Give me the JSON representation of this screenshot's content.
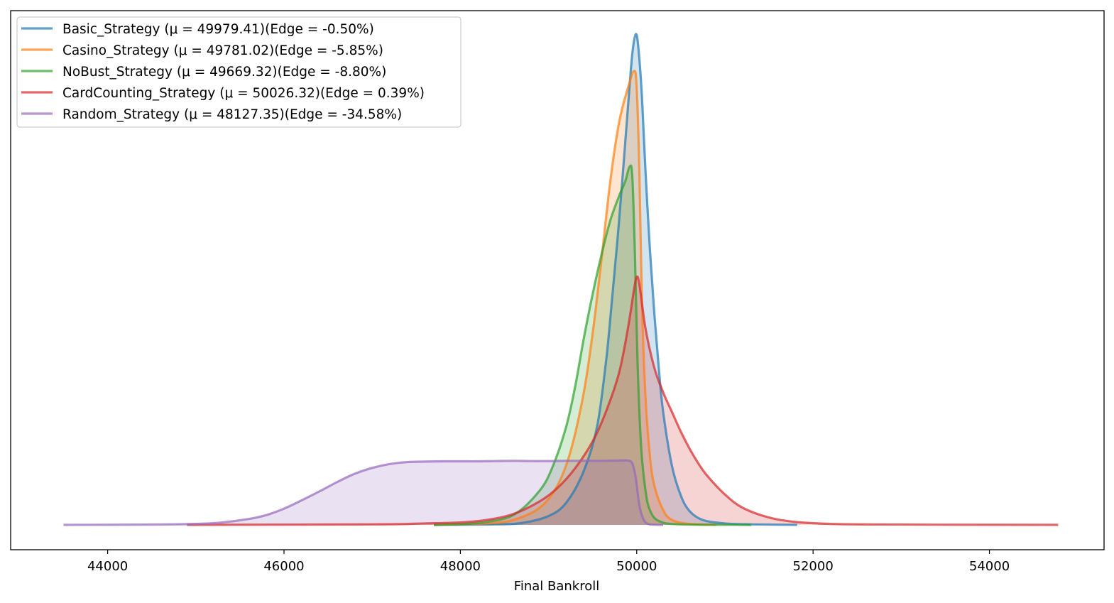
{
  "chart_data": {
    "type": "area",
    "title": "",
    "xlabel": "Final Bankroll",
    "ylabel": "",
    "xlim": [
      42900,
      55300
    ],
    "ylim": [
      0,
      1.0
    ],
    "x_ticks": [
      44000,
      46000,
      48000,
      50000,
      52000,
      54000
    ],
    "x_tick_labels": [
      "44000",
      "46000",
      "48000",
      "50000",
      "52000",
      "54000"
    ],
    "grid": false,
    "legend_position": "upper-left",
    "series": [
      {
        "name": "Basic_Strategy (μ = 49979.41)(Edge = -0.50%)",
        "color": "#1f77b4",
        "points": [
          [
            47700,
            0
          ],
          [
            48400,
            0.001
          ],
          [
            48700,
            0.004
          ],
          [
            49000,
            0.018
          ],
          [
            49200,
            0.045
          ],
          [
            49400,
            0.11
          ],
          [
            49550,
            0.2
          ],
          [
            49650,
            0.33
          ],
          [
            49700,
            0.42
          ],
          [
            49800,
            0.62
          ],
          [
            49900,
            0.85
          ],
          [
            49950,
            0.96
          ],
          [
            49990,
            1.0
          ],
          [
            50020,
            0.97
          ],
          [
            50060,
            0.87
          ],
          [
            50100,
            0.72
          ],
          [
            50150,
            0.56
          ],
          [
            50200,
            0.43
          ],
          [
            50250,
            0.32
          ],
          [
            50300,
            0.23
          ],
          [
            50400,
            0.12
          ],
          [
            50500,
            0.06
          ],
          [
            50600,
            0.028
          ],
          [
            50750,
            0.01
          ],
          [
            51000,
            0.003
          ],
          [
            51300,
            0.001
          ],
          [
            51820,
            0
          ]
        ]
      },
      {
        "name": "Casino_Strategy (μ = 49781.02)(Edge = -5.85%)",
        "color": "#ff7f0e",
        "points": [
          [
            47700,
            0
          ],
          [
            48300,
            0.003
          ],
          [
            48600,
            0.01
          ],
          [
            48900,
            0.035
          ],
          [
            49100,
            0.08
          ],
          [
            49250,
            0.15
          ],
          [
            49400,
            0.27
          ],
          [
            49500,
            0.39
          ],
          [
            49600,
            0.54
          ],
          [
            49700,
            0.7
          ],
          [
            49800,
            0.82
          ],
          [
            49900,
            0.89
          ],
          [
            49970,
            0.925
          ],
          [
            50000,
            0.89
          ],
          [
            50030,
            0.72
          ],
          [
            50060,
            0.45
          ],
          [
            50100,
            0.26
          ],
          [
            50150,
            0.14
          ],
          [
            50200,
            0.08
          ],
          [
            50300,
            0.03
          ],
          [
            50400,
            0.01
          ],
          [
            50600,
            0.002
          ],
          [
            50900,
            0.0
          ]
        ]
      },
      {
        "name": "NoBust_Strategy (μ = 49669.32)(Edge = -8.80%)",
        "color": "#2ca02c",
        "points": [
          [
            47700,
            0
          ],
          [
            48200,
            0.004
          ],
          [
            48600,
            0.02
          ],
          [
            48900,
            0.07
          ],
          [
            49050,
            0.12
          ],
          [
            49200,
            0.2
          ],
          [
            49300,
            0.28
          ],
          [
            49400,
            0.38
          ],
          [
            49500,
            0.47
          ],
          [
            49600,
            0.55
          ],
          [
            49700,
            0.62
          ],
          [
            49800,
            0.67
          ],
          [
            49870,
            0.7
          ],
          [
            49920,
            0.73
          ],
          [
            49950,
            0.71
          ],
          [
            49980,
            0.55
          ],
          [
            50010,
            0.33
          ],
          [
            50050,
            0.16
          ],
          [
            50100,
            0.07
          ],
          [
            50150,
            0.03
          ],
          [
            50250,
            0.008
          ],
          [
            50500,
            0.001
          ],
          [
            51300,
            0
          ]
        ]
      },
      {
        "name": "CardCounting_Strategy (μ = 50026.32)(Edge = 0.39%)",
        "color": "#d62728",
        "points": [
          [
            44900,
            0
          ],
          [
            47000,
            0.001
          ],
          [
            47600,
            0.003
          ],
          [
            48000,
            0.005
          ],
          [
            48300,
            0.01
          ],
          [
            48600,
            0.022
          ],
          [
            48900,
            0.048
          ],
          [
            49100,
            0.075
          ],
          [
            49300,
            0.115
          ],
          [
            49500,
            0.17
          ],
          [
            49650,
            0.23
          ],
          [
            49800,
            0.31
          ],
          [
            49900,
            0.4
          ],
          [
            49970,
            0.48
          ],
          [
            50000,
            0.505
          ],
          [
            50030,
            0.49
          ],
          [
            50100,
            0.4
          ],
          [
            50200,
            0.32
          ],
          [
            50300,
            0.27
          ],
          [
            50400,
            0.23
          ],
          [
            50500,
            0.19
          ],
          [
            50600,
            0.155
          ],
          [
            50700,
            0.125
          ],
          [
            50800,
            0.1
          ],
          [
            51000,
            0.062
          ],
          [
            51200,
            0.035
          ],
          [
            51500,
            0.015
          ],
          [
            51800,
            0.006
          ],
          [
            52200,
            0.002
          ],
          [
            52700,
            0.0008
          ],
          [
            53500,
            0.0003
          ],
          [
            54780,
            0
          ]
        ]
      },
      {
        "name": "Random_Strategy (μ = 48127.35)(Edge = -34.58%)",
        "color": "#9467bd",
        "points": [
          [
            43500,
            0
          ],
          [
            44500,
            0.0005
          ],
          [
            45000,
            0.002
          ],
          [
            45300,
            0.005
          ],
          [
            45600,
            0.012
          ],
          [
            45800,
            0.02
          ],
          [
            46000,
            0.033
          ],
          [
            46200,
            0.05
          ],
          [
            46400,
            0.068
          ],
          [
            46600,
            0.087
          ],
          [
            46800,
            0.104
          ],
          [
            47000,
            0.116
          ],
          [
            47200,
            0.124
          ],
          [
            47400,
            0.128
          ],
          [
            47600,
            0.129
          ],
          [
            47800,
            0.1295
          ],
          [
            48000,
            0.1295
          ],
          [
            48200,
            0.1295
          ],
          [
            48400,
            0.13
          ],
          [
            48600,
            0.1305
          ],
          [
            48800,
            0.13
          ],
          [
            49000,
            0.13
          ],
          [
            49200,
            0.1305
          ],
          [
            49400,
            0.1305
          ],
          [
            49600,
            0.1305
          ],
          [
            49800,
            0.131
          ],
          [
            49900,
            0.131
          ],
          [
            49950,
            0.125
          ],
          [
            49990,
            0.095
          ],
          [
            50030,
            0.04
          ],
          [
            50080,
            0.01
          ],
          [
            50150,
            0.001
          ],
          [
            50300,
            0
          ]
        ]
      }
    ]
  }
}
